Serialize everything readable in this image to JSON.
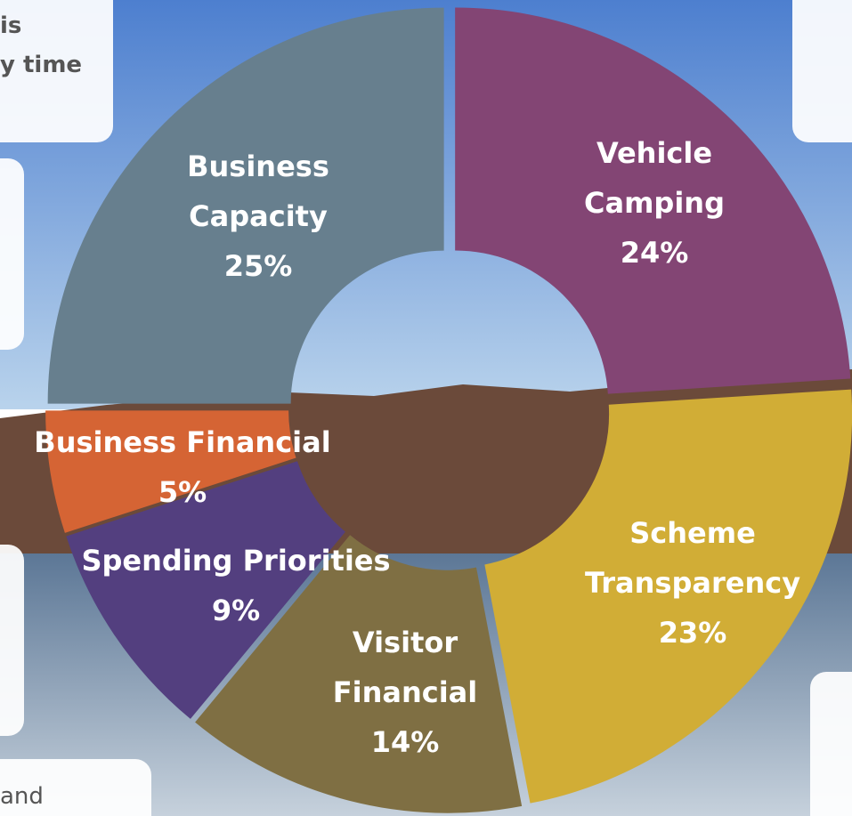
{
  "chart_data": {
    "type": "donut",
    "categories": [
      "Vehicle Camping",
      "Scheme Transparency",
      "Visitor Financial",
      "Spending Priorities",
      "Business Financial",
      "Business Capacity"
    ],
    "values": [
      24,
      23,
      14,
      9,
      5,
      25
    ],
    "value_labels": [
      "24%",
      "23%",
      "14%",
      "9%",
      "5%",
      "25%"
    ],
    "colors": [
      "#834574",
      "#d1ad36",
      "#7f6f43",
      "#533f7f",
      "#d56434",
      "#677f8e"
    ]
  },
  "background_texts": [
    "is",
    "y time",
    "and"
  ]
}
